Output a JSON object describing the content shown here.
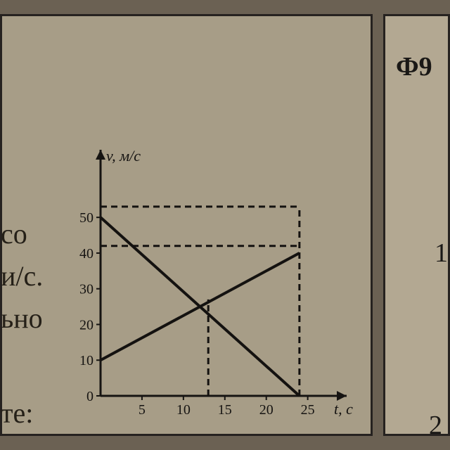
{
  "left_fragments": {
    "l1": "со",
    "l2": "и/с.",
    "l3": "ьно",
    "l4": "те:"
  },
  "right_fragments": {
    "r1": "Ф9",
    "r2": "1",
    "r3": "2"
  },
  "chart": {
    "type": "line",
    "y_label": "v, м/с",
    "x_label": "t, с",
    "bg": "#a79d87",
    "axis_color": "#161412",
    "axis_width": 3,
    "axis_fontsize": 20,
    "label_fontsize": 22,
    "x_ticks": [
      5,
      10,
      15,
      20,
      25
    ],
    "y_ticks": [
      0,
      10,
      20,
      30,
      40,
      50
    ],
    "xlim": [
      0,
      28
    ],
    "ylim": [
      0,
      65
    ],
    "series": [
      {
        "name": "line1",
        "points": [
          [
            0,
            50
          ],
          [
            24,
            0
          ]
        ],
        "color": "#141210",
        "width": 4,
        "dash": "none"
      },
      {
        "name": "line2",
        "points": [
          [
            0,
            10
          ],
          [
            24,
            40
          ]
        ],
        "color": "#141210",
        "width": 4,
        "dash": "none"
      }
    ],
    "guides": [
      {
        "points": [
          [
            0,
            42
          ],
          [
            24,
            42
          ]
        ],
        "dash": "9,6",
        "width": 3,
        "color": "#141210"
      },
      {
        "points": [
          [
            0,
            53
          ],
          [
            24,
            53
          ]
        ],
        "dash": "9,6",
        "width": 3,
        "color": "#141210"
      },
      {
        "points": [
          [
            24,
            0
          ],
          [
            24,
            53
          ]
        ],
        "dash": "9,6",
        "width": 3,
        "color": "#141210"
      },
      {
        "points": [
          [
            13,
            0
          ],
          [
            13,
            27
          ]
        ],
        "dash": "9,6",
        "width": 3,
        "color": "#141210"
      }
    ]
  }
}
